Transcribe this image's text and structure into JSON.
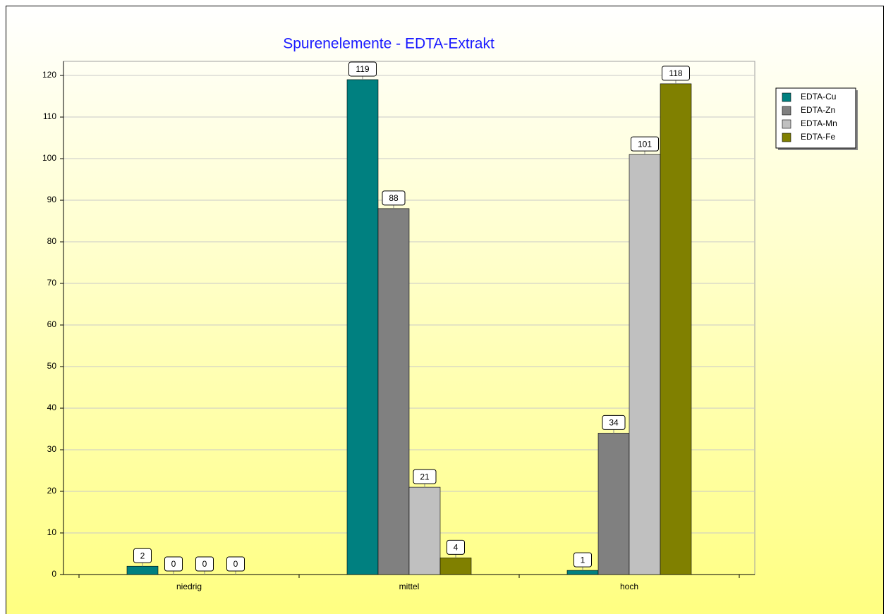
{
  "chart_data": {
    "type": "bar",
    "title": "Spurenelemente - EDTA-Extrakt",
    "categories": [
      "niedrig",
      "mittel",
      "hoch"
    ],
    "series": [
      {
        "name": "EDTA-Cu",
        "color": "#008080",
        "values": [
          2,
          119,
          1
        ]
      },
      {
        "name": "EDTA-Zn",
        "color": "#808080",
        "values": [
          0,
          88,
          34
        ]
      },
      {
        "name": "EDTA-Mn",
        "color": "#c0c0c0",
        "values": [
          0,
          21,
          101
        ]
      },
      {
        "name": "EDTA-Fe",
        "color": "#808000",
        "values": [
          0,
          4,
          118
        ]
      }
    ],
    "ylim": [
      0,
      123.4
    ],
    "yticks": [
      0,
      10,
      20,
      30,
      40,
      50,
      60,
      70,
      80,
      90,
      100,
      110,
      120
    ],
    "grid": true,
    "legend": "right"
  }
}
